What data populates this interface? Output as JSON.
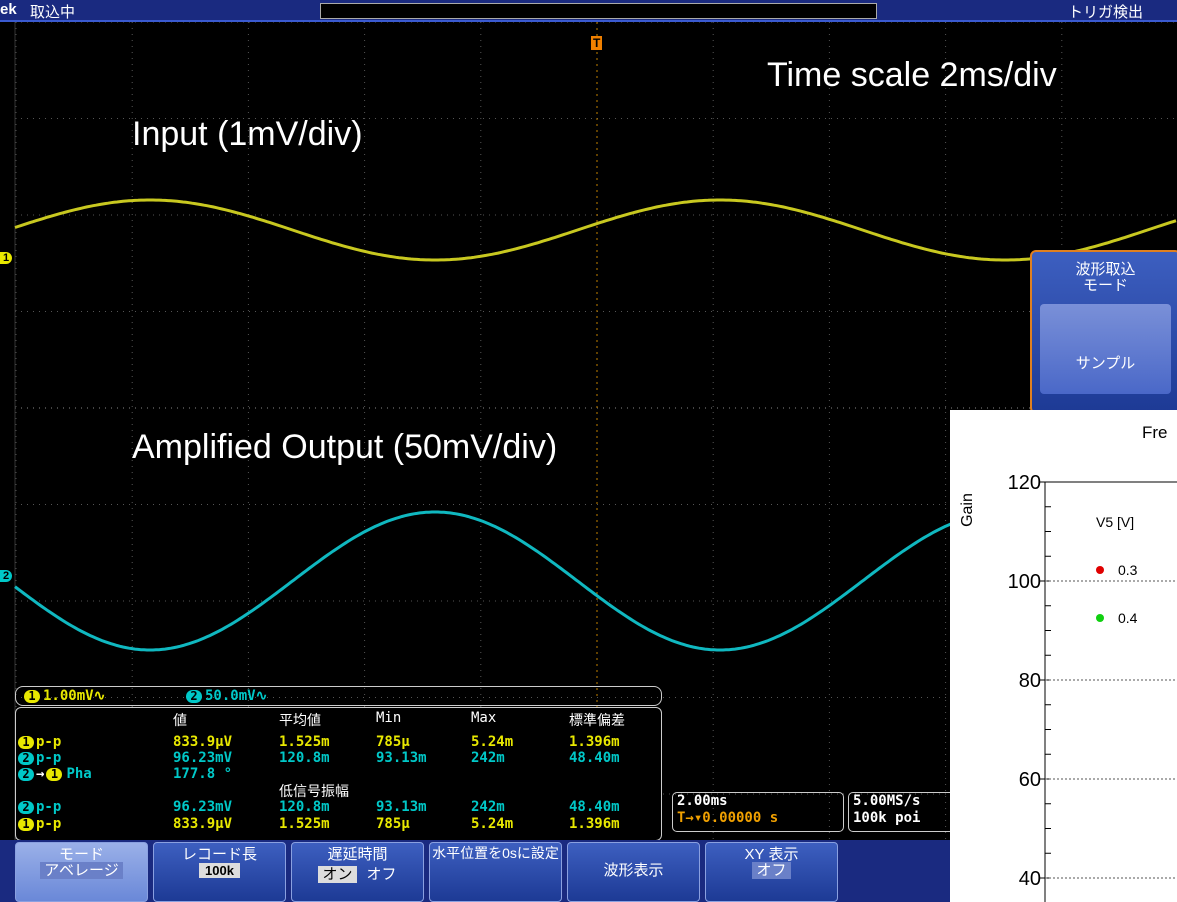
{
  "status_bar": {
    "brand": "ek",
    "state": "取込中",
    "trigger": "トリガ検出"
  },
  "annotations": {
    "time_scale": "Time scale 2ms/div",
    "input": "Input   (1mV/div)",
    "output": "Amplified Output (50mV/div)"
  },
  "trigger_marker": "T",
  "channel_markers": {
    "ch1": "1",
    "ch2": "2"
  },
  "side_menu": {
    "title_line1": "波形取込",
    "title_line2": "モード",
    "option": "サンプル"
  },
  "channel_scale": {
    "ch1": "1",
    "ch1_scale": "1.00mV∿",
    "ch2": "2",
    "ch2_scale": "50.0mV∿"
  },
  "measurements": {
    "headers": [
      "値",
      "平均値",
      "Min",
      "Max",
      "標準偏差"
    ],
    "rows": [
      {
        "channel": "1",
        "label": "p-p",
        "values": [
          "833.9μV",
          "1.525m",
          "785μ",
          "5.24m",
          "1.396m"
        ]
      },
      {
        "channel": "2",
        "label": "p-p",
        "values": [
          "96.23mV",
          "120.8m",
          "93.13m",
          "242m",
          "48.40m"
        ]
      },
      {
        "channel": "2",
        "arrow": "→",
        "target": "1",
        "label": "Pha",
        "values": [
          "177.8 °"
        ]
      }
    ],
    "section": "低信号振幅",
    "low_signal_rows": [
      {
        "channel": "2",
        "label": "p-p",
        "values": [
          "96.23mV",
          "120.8m",
          "93.13m",
          "242m",
          "48.40m"
        ]
      },
      {
        "channel": "1",
        "label": "p-p",
        "values": [
          "833.9μV",
          "1.525m",
          "785μ",
          "5.24m",
          "1.396m"
        ]
      }
    ]
  },
  "horizontal": {
    "scale": "2.00ms",
    "position": "T→▾0.00000 s",
    "sample_rate": "5.00MS/s",
    "record": "100k poi"
  },
  "buttons": [
    {
      "label": "モード",
      "value": "アベレージ"
    },
    {
      "label": "レコード長",
      "value": "100k"
    },
    {
      "label": "遅延時間",
      "on": "オン",
      "off": "オフ"
    },
    {
      "label": "水平位置を0sに設定"
    },
    {
      "label": "波形表示"
    },
    {
      "label": "XY 表示",
      "value": "オフ"
    }
  ],
  "inset_chart": {
    "title": "Fre",
    "y_label": "Gain",
    "yticks": [
      120,
      100,
      80,
      60,
      40
    ],
    "legend_title": "V5 [V]",
    "legend": [
      {
        "name": "0.3",
        "color": "#e00000"
      },
      {
        "name": "0.4",
        "color": "#10d010"
      }
    ]
  }
}
